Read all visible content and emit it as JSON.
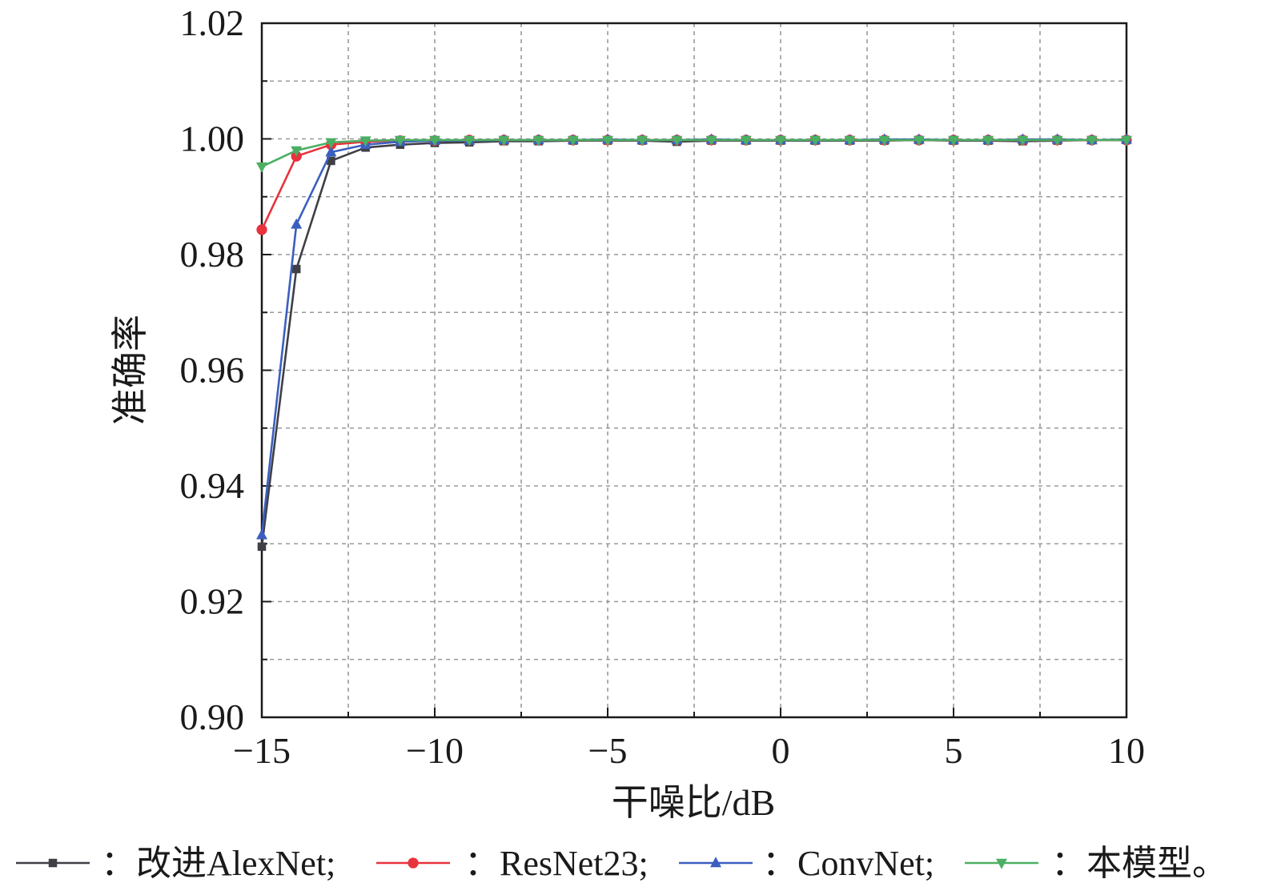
{
  "chart_data": {
    "type": "line",
    "xlabel": "干噪比/dB",
    "ylabel": "准确率",
    "xlim": [
      -15,
      10
    ],
    "ylim": [
      0.9,
      1.02
    ],
    "x_ticks": [
      -15,
      -10,
      -5,
      0,
      5,
      10
    ],
    "x_tick_labels": [
      "−15",
      "−10",
      "−5",
      "0",
      "5",
      "10"
    ],
    "y_ticks": [
      0.9,
      0.92,
      0.94,
      0.96,
      0.98,
      1.0,
      1.02
    ],
    "y_tick_labels": [
      "0.90",
      "0.92",
      "0.94",
      "0.96",
      "0.98",
      "1.00",
      "1.02"
    ],
    "grid": true,
    "legend_position": "bottom",
    "x": [
      -15,
      -14,
      -13,
      -12,
      -11,
      -10,
      -9,
      -8,
      -7,
      -6,
      -5,
      -4,
      -3,
      -2,
      -1,
      0,
      1,
      2,
      3,
      4,
      5,
      6,
      7,
      8,
      9,
      10
    ],
    "series": [
      {
        "name": "改进AlexNet",
        "legend_label": "：改进AlexNet;",
        "color": "#3f3f46",
        "marker": "square",
        "values": [
          0.9295,
          0.9775,
          0.9962,
          0.9985,
          0.999,
          0.9993,
          0.9994,
          0.9996,
          0.9996,
          0.9997,
          0.9997,
          0.9997,
          0.9995,
          0.9997,
          0.9997,
          0.9997,
          0.9997,
          0.9997,
          0.9997,
          0.9998,
          0.9997,
          0.9997,
          0.9996,
          0.9997,
          0.9998,
          0.9998
        ]
      },
      {
        "name": "ResNet23",
        "legend_label": "：ResNet23;",
        "color": "#e8323c",
        "marker": "circle",
        "values": [
          0.9843,
          0.997,
          0.999,
          0.9995,
          0.9997,
          0.9997,
          0.9998,
          0.9998,
          0.9998,
          0.9998,
          0.9998,
          0.9998,
          0.9998,
          0.9998,
          0.9998,
          0.9998,
          0.9998,
          0.9998,
          0.9998,
          0.9998,
          0.9998,
          0.9998,
          0.9998,
          0.9998,
          0.9998,
          0.9998
        ]
      },
      {
        "name": "ConvNet",
        "legend_label": "：ConvNet;",
        "color": "#3b5fc0",
        "marker": "triangle-up",
        "values": [
          0.9315,
          0.9852,
          0.9977,
          0.999,
          0.9995,
          0.9997,
          0.9997,
          0.9998,
          0.9998,
          0.9998,
          0.9999,
          0.9998,
          0.9998,
          0.9999,
          0.9998,
          0.9998,
          0.9998,
          0.9998,
          0.9999,
          0.9999,
          0.9998,
          0.9998,
          0.9999,
          0.9999,
          0.9998,
          0.9999
        ]
      },
      {
        "name": "本模型",
        "legend_label": "：本模型。",
        "color": "#4caf63",
        "marker": "triangle-down",
        "values": [
          0.9952,
          0.998,
          0.9994,
          0.9997,
          0.9998,
          0.9998,
          0.9998,
          0.9998,
          0.9998,
          0.9998,
          0.9998,
          0.9998,
          0.9998,
          0.9998,
          0.9998,
          0.9998,
          0.9998,
          0.9998,
          0.9998,
          0.9998,
          0.9998,
          0.9998,
          0.9998,
          0.9998,
          0.9998,
          0.9998
        ]
      }
    ]
  }
}
